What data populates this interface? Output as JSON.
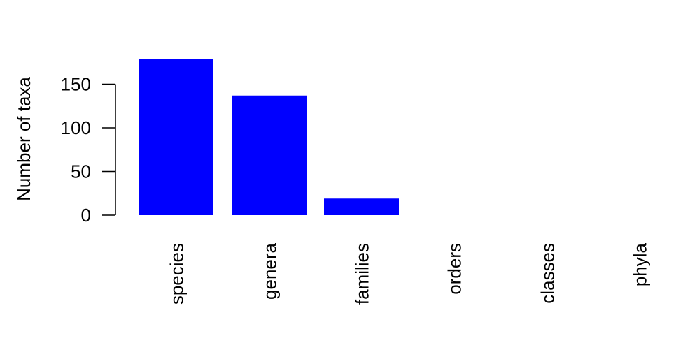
{
  "chart_data": {
    "type": "bar",
    "categories": [
      "species",
      "genera",
      "families",
      "orders",
      "classes",
      "phyla"
    ],
    "values": [
      179,
      137,
      19,
      0,
      0,
      0
    ],
    "title": "",
    "xlabel": "",
    "ylabel": "Number of taxa",
    "ylim": [
      0,
      190
    ],
    "yticks": [
      "0",
      "50",
      "100",
      "150"
    ],
    "grid": false,
    "bar_color": "#0000ff"
  }
}
